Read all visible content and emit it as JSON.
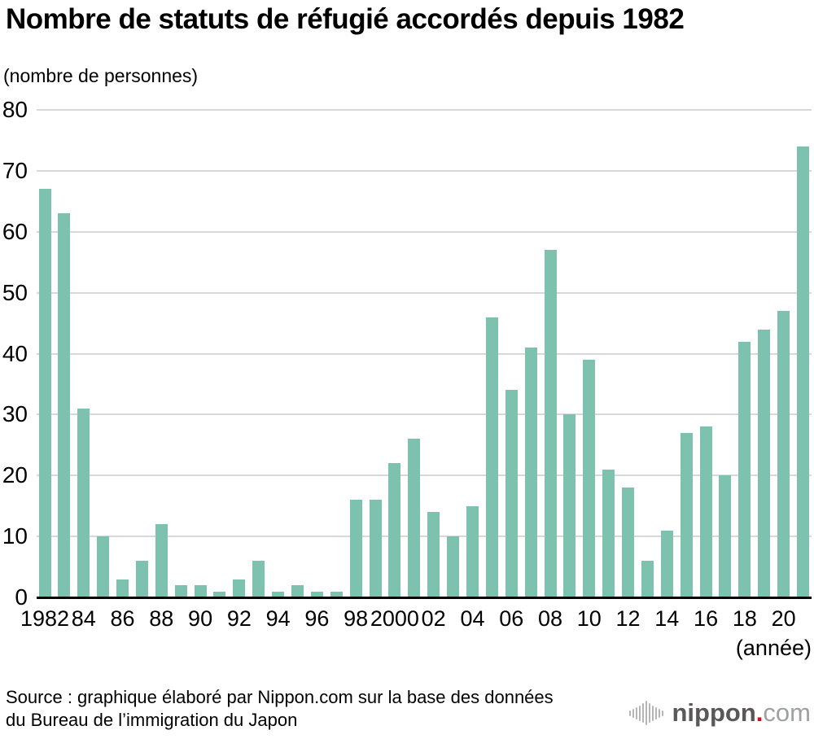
{
  "title": "Nombre de statuts de réfugié accordés depuis 1982",
  "unit_label": "(nombre de personnes)",
  "x_axis_unit": "(année)",
  "source": {
    "line1": "Source : graphique élaboré par Nippon.com sur la base des données",
    "line2": "du Bureau de l’immigration du Japon"
  },
  "logo": {
    "icon": "equalizer-icon",
    "name": "nippon",
    "dot": ".",
    "tld": "com"
  },
  "colors": {
    "bar": "#7cc2ae",
    "gridline": "#d8d8d8",
    "axis": "#000000",
    "logo_dark": "#595757",
    "logo_light": "#9fa0a0",
    "logo_dot": "#e60012",
    "logo_icon": "#b5b5b6"
  },
  "chart_data": {
    "type": "bar",
    "title": "Nombre de statuts de réfugié accordés depuis 1982",
    "ylabel": "(nombre de personnes)",
    "xlabel": "(année)",
    "x": [
      1982,
      1983,
      1984,
      1985,
      1986,
      1987,
      1988,
      1989,
      1990,
      1991,
      1992,
      1993,
      1994,
      1995,
      1996,
      1997,
      1998,
      1999,
      2000,
      2001,
      2002,
      2003,
      2004,
      2005,
      2006,
      2007,
      2008,
      2009,
      2010,
      2011,
      2012,
      2013,
      2014,
      2015,
      2016,
      2017,
      2018,
      2019,
      2020,
      2021
    ],
    "values": [
      67,
      63,
      31,
      10,
      3,
      6,
      12,
      2,
      2,
      1,
      3,
      6,
      1,
      2,
      1,
      1,
      16,
      16,
      22,
      26,
      14,
      10,
      15,
      46,
      34,
      41,
      57,
      30,
      39,
      21,
      18,
      6,
      11,
      27,
      28,
      20,
      42,
      44,
      47,
      74
    ],
    "xtick_labels": [
      "1982",
      "84",
      "86",
      "88",
      "90",
      "92",
      "94",
      "96",
      "98",
      "2000",
      "02",
      "04",
      "06",
      "08",
      "10",
      "12",
      "14",
      "16",
      "18",
      "20"
    ],
    "ytick_labels": [
      "0",
      "10",
      "20",
      "30",
      "40",
      "50",
      "60",
      "70",
      "80"
    ],
    "ylim": [
      0,
      80
    ],
    "ytick_step": 10,
    "grid": true,
    "legend": "none"
  }
}
